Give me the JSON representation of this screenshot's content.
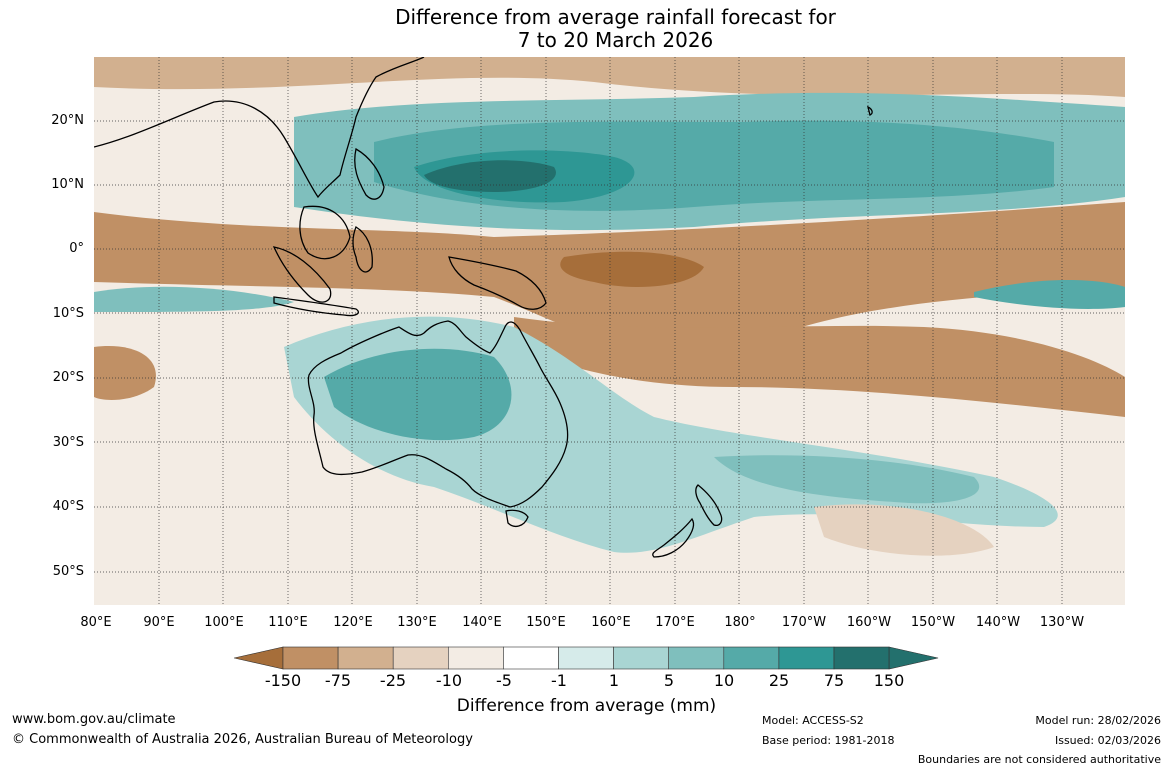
{
  "title": {
    "line1": "Difference from average rainfall forecast for",
    "line2": "7 to 20 March 2026"
  },
  "map": {
    "lat_labels": [
      "20°N",
      "10°N",
      "0°",
      "10°S",
      "20°S",
      "30°S",
      "40°S",
      "50°S"
    ],
    "lon_labels": [
      "80°E",
      "90°E",
      "100°E",
      "110°E",
      "120°E",
      "130°E",
      "140°E",
      "150°E",
      "160°E",
      "170°E",
      "180°",
      "170°W",
      "160°W",
      "150°W",
      "140°W",
      "130°W"
    ]
  },
  "legend": {
    "title": "Difference from average (mm)",
    "ticks": [
      "-150",
      "-75",
      "-25",
      "-10",
      "-5",
      "-1",
      "1",
      "5",
      "10",
      "25",
      "75",
      "150"
    ],
    "colors": [
      "#a66e3a",
      "#c09065",
      "#d2b08f",
      "#e5d2c0",
      "#f3ece4",
      "#ffffff",
      "#d6ebea",
      "#a9d5d3",
      "#7fbfbd",
      "#55aaa8",
      "#2e9794",
      "#23706d"
    ],
    "low_arrow_color": "#a66e3a",
    "high_arrow_color": "#23706d"
  },
  "footer": {
    "website": "www.bom.gov.au/climate",
    "copyright": "© Commonwealth of Australia 2026, Australian Bureau of Meteorology",
    "model": "Model: ACCESS-S2",
    "base_period": "Base period: 1981-2018",
    "model_run": "Model run: 28/02/2026",
    "issued": "Issued: 02/03/2026",
    "disclaimer": "Boundaries are not considered authoritative"
  }
}
